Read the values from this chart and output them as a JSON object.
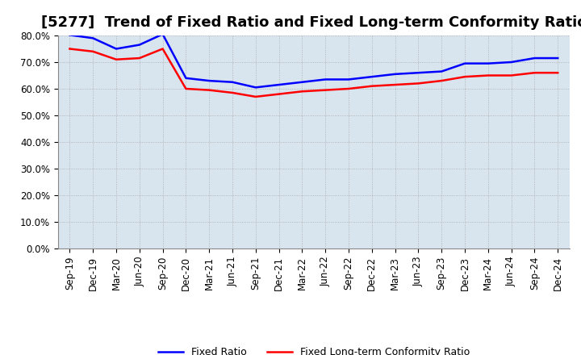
{
  "title": "[5277]  Trend of Fixed Ratio and Fixed Long-term Conformity Ratio",
  "x_labels": [
    "Sep-19",
    "Dec-19",
    "Mar-20",
    "Jun-20",
    "Sep-20",
    "Dec-20",
    "Mar-21",
    "Jun-21",
    "Sep-21",
    "Dec-21",
    "Mar-22",
    "Jun-22",
    "Sep-22",
    "Dec-22",
    "Mar-23",
    "Jun-23",
    "Sep-23",
    "Dec-23",
    "Mar-24",
    "Jun-24",
    "Sep-24",
    "Dec-24"
  ],
  "fixed_ratio": [
    80.2,
    79.0,
    75.0,
    76.5,
    80.5,
    64.0,
    63.0,
    62.5,
    60.5,
    61.5,
    62.5,
    63.5,
    63.5,
    64.5,
    65.5,
    66.0,
    66.5,
    69.5,
    69.5,
    70.0,
    71.5,
    71.5
  ],
  "fixed_lt_ratio": [
    75.0,
    74.0,
    71.0,
    71.5,
    75.0,
    60.0,
    59.5,
    58.5,
    57.0,
    58.0,
    59.0,
    59.5,
    60.0,
    61.0,
    61.5,
    62.0,
    63.0,
    64.5,
    65.0,
    65.0,
    66.0,
    66.0
  ],
  "fixed_ratio_color": "#0000FF",
  "fixed_lt_ratio_color": "#FF0000",
  "ylim": [
    0,
    80
  ],
  "yticks": [
    0,
    10,
    20,
    30,
    40,
    50,
    60,
    70,
    80
  ],
  "chart_bg_color": "#D8E4EE",
  "fig_bg_color": "#FFFFFF",
  "grid_color": "#AAAAAA",
  "title_fontsize": 13,
  "axis_fontsize": 8.5,
  "legend_label_fixed": "Fixed Ratio",
  "legend_label_lt": "Fixed Long-term Conformity Ratio",
  "line_width": 1.8
}
